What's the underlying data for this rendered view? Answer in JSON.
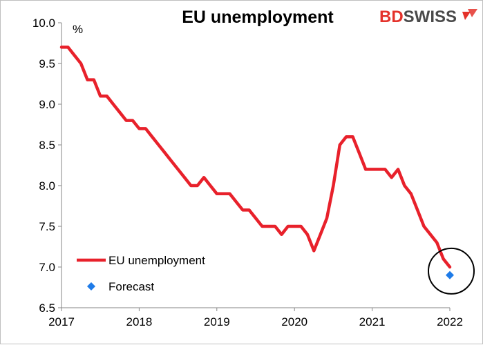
{
  "chart_data": {
    "type": "line",
    "title": "EU unemployment",
    "ylabel": "%",
    "xlabel": "",
    "ylim": [
      6.5,
      10.0
    ],
    "yticks": [
      "10.0",
      "9.5",
      "9.0",
      "8.5",
      "8.0",
      "7.5",
      "7.0",
      "6.5"
    ],
    "xticks": [
      "2017",
      "2018",
      "2019",
      "2020",
      "2021",
      "2022"
    ],
    "legend_position": "bottom-left",
    "series": [
      {
        "name": "EU unemployment",
        "color": "#e8212b",
        "points": [
          [
            "2017-01",
            9.7
          ],
          [
            "2017-02",
            9.7
          ],
          [
            "2017-03",
            9.6
          ],
          [
            "2017-04",
            9.5
          ],
          [
            "2017-05",
            9.3
          ],
          [
            "2017-06",
            9.3
          ],
          [
            "2017-07",
            9.1
          ],
          [
            "2017-08",
            9.1
          ],
          [
            "2017-09",
            9.0
          ],
          [
            "2017-10",
            8.9
          ],
          [
            "2017-11",
            8.8
          ],
          [
            "2017-12",
            8.8
          ],
          [
            "2018-01",
            8.7
          ],
          [
            "2018-02",
            8.7
          ],
          [
            "2018-03",
            8.6
          ],
          [
            "2018-04",
            8.5
          ],
          [
            "2018-05",
            8.4
          ],
          [
            "2018-06",
            8.3
          ],
          [
            "2018-07",
            8.2
          ],
          [
            "2018-08",
            8.1
          ],
          [
            "2018-09",
            8.0
          ],
          [
            "2018-10",
            8.0
          ],
          [
            "2018-11",
            8.1
          ],
          [
            "2018-12",
            8.0
          ],
          [
            "2019-01",
            7.9
          ],
          [
            "2019-02",
            7.9
          ],
          [
            "2019-03",
            7.9
          ],
          [
            "2019-04",
            7.8
          ],
          [
            "2019-05",
            7.7
          ],
          [
            "2019-06",
            7.7
          ],
          [
            "2019-07",
            7.6
          ],
          [
            "2019-08",
            7.5
          ],
          [
            "2019-09",
            7.5
          ],
          [
            "2019-10",
            7.5
          ],
          [
            "2019-11",
            7.4
          ],
          [
            "2019-12",
            7.5
          ],
          [
            "2020-01",
            7.5
          ],
          [
            "2020-02",
            7.5
          ],
          [
            "2020-03",
            7.4
          ],
          [
            "2020-04",
            7.2
          ],
          [
            "2020-05",
            7.4
          ],
          [
            "2020-06",
            7.6
          ],
          [
            "2020-07",
            8.0
          ],
          [
            "2020-08",
            8.5
          ],
          [
            "2020-09",
            8.6
          ],
          [
            "2020-10",
            8.6
          ],
          [
            "2020-11",
            8.4
          ],
          [
            "2020-12",
            8.2
          ],
          [
            "2021-01",
            8.2
          ],
          [
            "2021-02",
            8.2
          ],
          [
            "2021-03",
            8.2
          ],
          [
            "2021-04",
            8.1
          ],
          [
            "2021-05",
            8.2
          ],
          [
            "2021-06",
            8.0
          ],
          [
            "2021-07",
            7.9
          ],
          [
            "2021-08",
            7.7
          ],
          [
            "2021-09",
            7.5
          ],
          [
            "2021-10",
            7.4
          ],
          [
            "2021-11",
            7.3
          ],
          [
            "2021-12",
            7.1
          ],
          [
            "2022-01",
            7.0
          ]
        ]
      },
      {
        "name": "Forecast",
        "color": "#1e7be8",
        "points": [
          [
            "2022-01",
            6.9
          ]
        ]
      }
    ],
    "annotation": "black circle around latest reading and forecast"
  },
  "logo": {
    "part1": "BD",
    "part2": "SWISS",
    "color1": "#e4322b",
    "color2": "#4a4a4a"
  }
}
